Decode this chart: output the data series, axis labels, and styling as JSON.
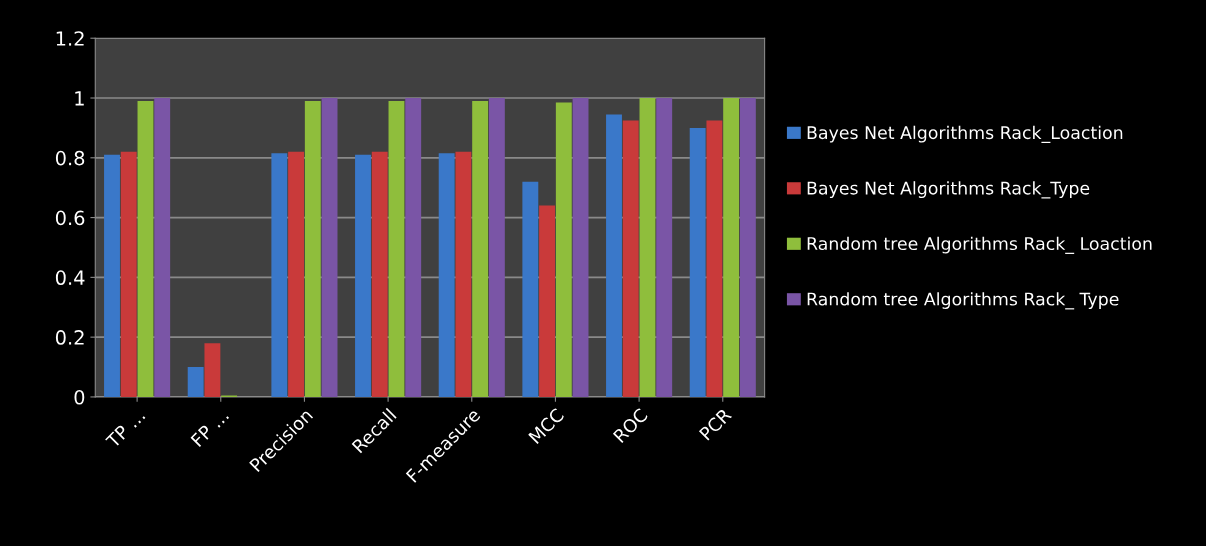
{
  "chart_data": {
    "type": "bar",
    "categories": [
      "TP …",
      "FP …",
      "Precision",
      "Recall",
      "F-measure",
      "MCC",
      "ROC",
      "PCR"
    ],
    "series": [
      {
        "name": "Bayes Net Algorithms Rack_Loaction",
        "color": "#3a78c9",
        "values": [
          0.81,
          0.1,
          0.815,
          0.81,
          0.815,
          0.72,
          0.945,
          0.9
        ]
      },
      {
        "name": "Bayes Net Algorithms Rack_Type",
        "color": "#c93a3a",
        "values": [
          0.82,
          0.18,
          0.82,
          0.82,
          0.82,
          0.64,
          0.925,
          0.925
        ]
      },
      {
        "name": "Random tree Algorithms Rack_ Loaction",
        "color": "#8fbe3c",
        "values": [
          0.99,
          0.005,
          0.99,
          0.99,
          0.99,
          0.985,
          1.0,
          1.0
        ]
      },
      {
        "name": "Random tree Algorithms Rack_ Type",
        "color": "#7a55a6",
        "values": [
          1.0,
          0,
          1.0,
          1.0,
          1.0,
          1.0,
          1.0,
          1.0
        ]
      }
    ],
    "ylim": [
      0,
      1.2
    ],
    "yticks": [
      0,
      0.2,
      0.4,
      0.6,
      0.8,
      1,
      1.2
    ],
    "grid": "y",
    "legend": "right"
  }
}
